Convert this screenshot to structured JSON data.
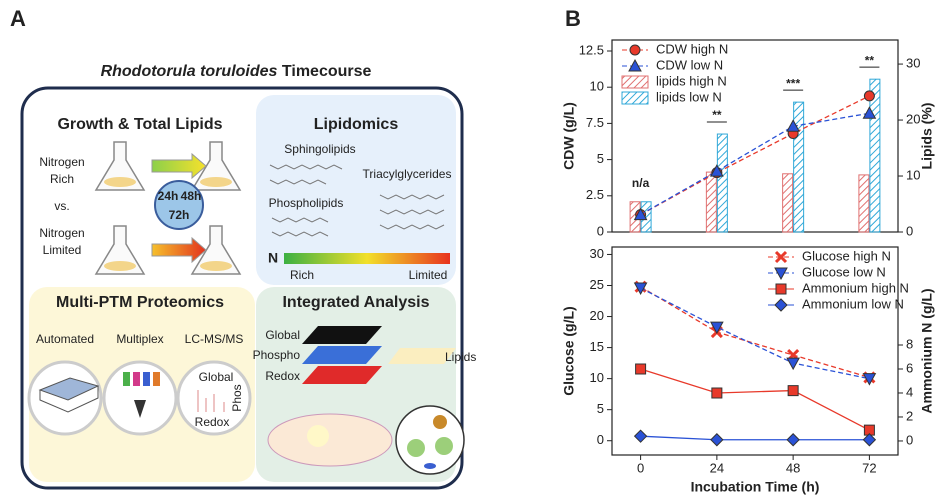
{
  "panel_a": {
    "label": "A",
    "title_italic": "Rhodotorula toruloides",
    "title": "Timecourse",
    "growth": {
      "title": "Growth & Total Lipids",
      "rich": [
        "Nitrogen",
        "Rich"
      ],
      "vs": "vs.",
      "limited": [
        "Nitrogen",
        "Limited"
      ],
      "times": [
        "24h",
        "48h",
        "72h"
      ]
    },
    "lipidomics": {
      "title": "Lipidomics",
      "classes": [
        "Sphingolipids",
        "Triacylglycerides",
        "Phospholipids"
      ],
      "n": "N",
      "rich": "Rich",
      "limited": "Limited"
    },
    "proteomics": {
      "title": "Multi-PTM Proteomics",
      "steps": [
        "Automated",
        "Multiplex",
        "LC-MS/MS"
      ],
      "global": "Global",
      "phos": "Phos",
      "redox": "Redox"
    },
    "integrated": {
      "title": "Integrated Analysis",
      "layers": [
        "Global",
        "Phospho",
        "Redox"
      ],
      "lipids": "Lipids"
    }
  },
  "panel_b_label": "B",
  "chart_data": [
    {
      "type": "combo",
      "ylabel": "CDW (g/L)",
      "y2label": "Lipids (%)",
      "x": [
        0,
        24,
        48,
        72
      ],
      "xlim": [
        -9,
        81
      ],
      "ylim": [
        0,
        13.26
      ],
      "yticks": [
        0,
        2.5,
        5,
        7.5,
        10,
        12.5
      ],
      "y2lim": [
        0,
        34.3
      ],
      "y2ticks": [
        0,
        10,
        20,
        30
      ],
      "legend": "upper-left",
      "series": [
        {
          "name": "CDW high N",
          "type": "line",
          "color": "#e8392a",
          "marker": "circle",
          "dash": true,
          "values": [
            1.2,
            4.1,
            6.8,
            9.4
          ]
        },
        {
          "name": "CDW low N",
          "type": "line",
          "color": "#2a52d6",
          "marker": "triangle",
          "dash": true,
          "values": [
            1.2,
            4.2,
            7.3,
            8.2
          ]
        },
        {
          "name": "lipids high N",
          "type": "bar",
          "axis": "y2",
          "color": "#e07070",
          "values": [
            5.4,
            10.7,
            10.4,
            10.2
          ]
        },
        {
          "name": "lipids low N",
          "type": "bar",
          "axis": "y2",
          "color": "#30a8d8",
          "values": [
            5.4,
            17.5,
            23.2,
            27.3
          ]
        }
      ],
      "annotations": [
        {
          "x": 0,
          "text": "n/a"
        },
        {
          "x": 24,
          "text": "**"
        },
        {
          "x": 48,
          "text": "***"
        },
        {
          "x": 72,
          "text": "**"
        }
      ]
    },
    {
      "type": "line",
      "ylabel": "Glucose (g/L)",
      "y2label": "Ammonium N (g/L)",
      "xlabel": "Incubation Time (h)",
      "x": [
        0,
        24,
        48,
        72
      ],
      "xlim": [
        -9,
        81
      ],
      "xticks": [
        0,
        24,
        48,
        72
      ],
      "ylim": [
        -2.3,
        31.2
      ],
      "yticks": [
        0,
        5,
        10,
        15,
        20,
        25,
        30
      ],
      "y2lim": [
        -1.17,
        16.17
      ],
      "y2ticks": [
        0,
        2,
        4,
        6,
        8
      ],
      "legend": "upper-right",
      "series": [
        {
          "name": "Glucose high N",
          "type": "line",
          "color": "#e8392a",
          "marker": "x",
          "dash": true,
          "values": [
            24.8,
            17.5,
            13.8,
            10.2
          ]
        },
        {
          "name": "Glucose low N",
          "type": "line",
          "color": "#2a52d6",
          "marker": "down-triangle",
          "dash": true,
          "values": [
            24.6,
            18.3,
            12.5,
            10.0
          ]
        },
        {
          "name": "Ammonium high N",
          "type": "line",
          "axis": "y2",
          "color": "#e8392a",
          "marker": "square",
          "dash": false,
          "values": [
            6.0,
            4.0,
            4.2,
            0.9
          ]
        },
        {
          "name": "Ammonium low N",
          "type": "line",
          "axis": "y2",
          "color": "#2a52d6",
          "marker": "diamond",
          "dash": false,
          "values": [
            0.4,
            0.1,
            0.1,
            0.1
          ]
        }
      ]
    }
  ]
}
